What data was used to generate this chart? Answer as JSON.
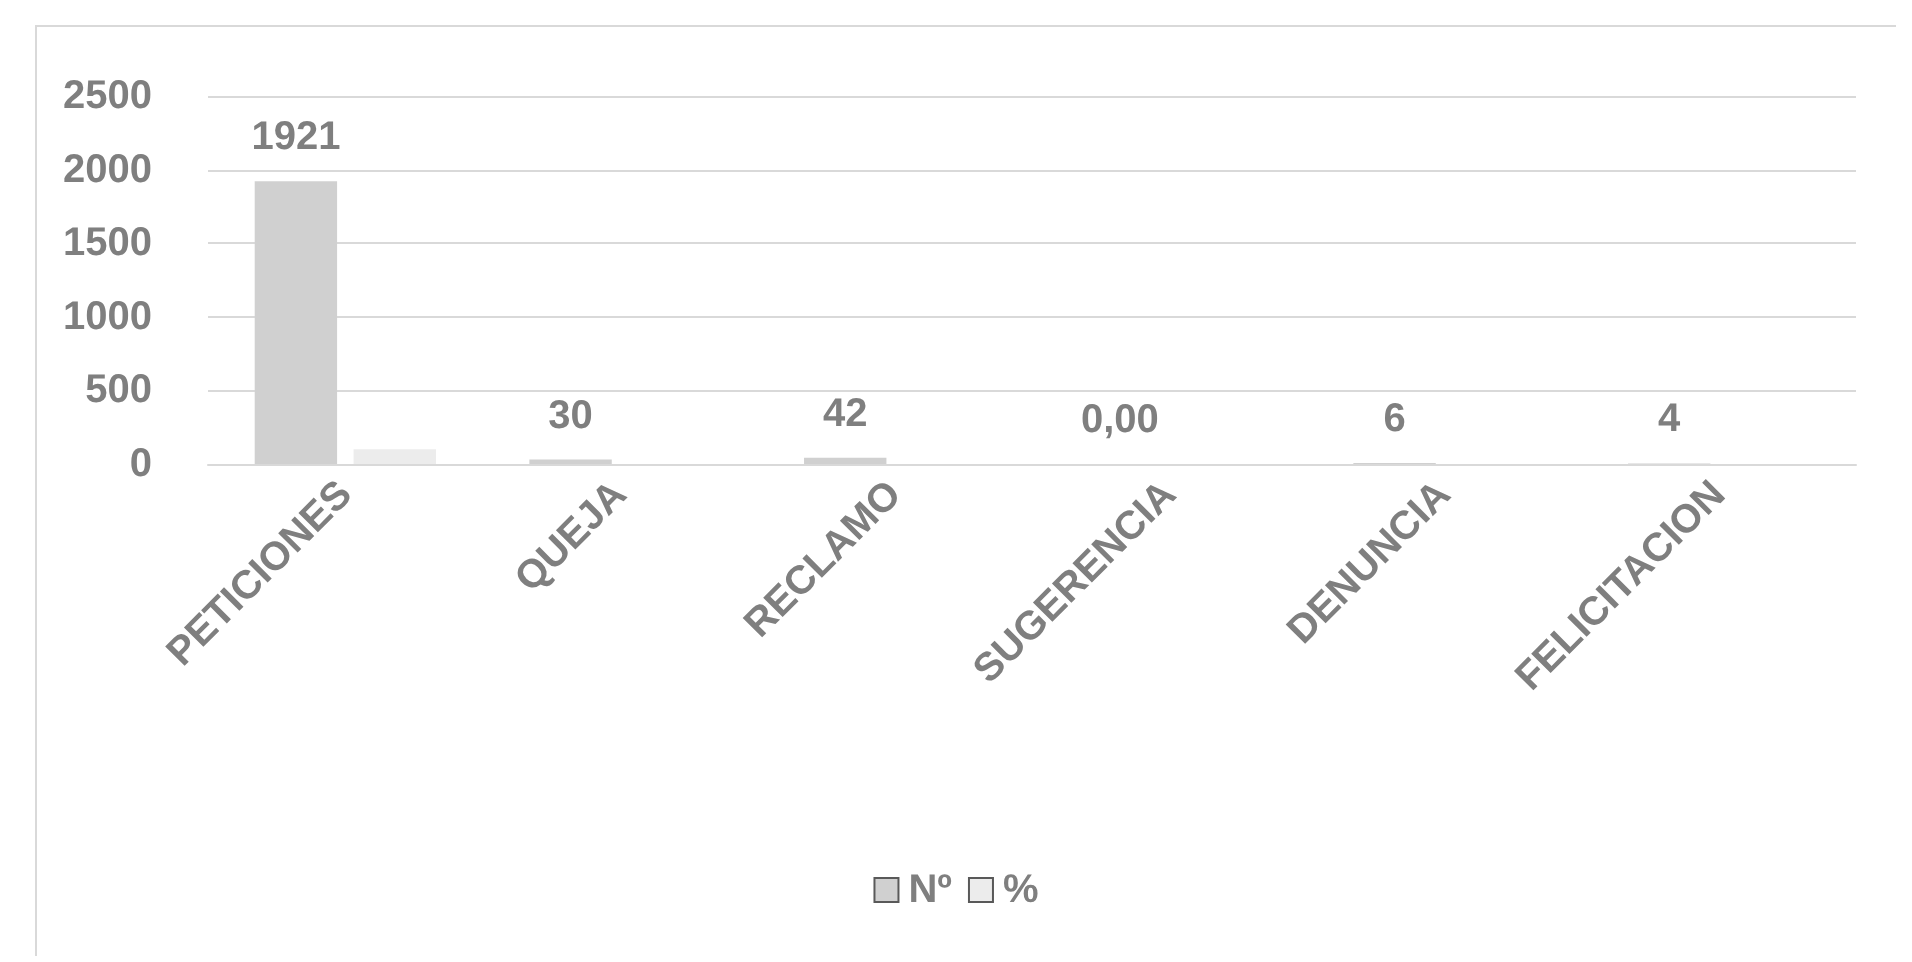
{
  "chart_data": {
    "type": "bar",
    "categories": [
      "PETICIONES",
      "QUEJA",
      "RECLAMO",
      "SUGERENCIA",
      "DENUNCIA",
      "FELICITACION"
    ],
    "series": [
      {
        "name": "Nº",
        "color": "#d0d0d0",
        "values": [
          1921,
          30,
          42,
          0,
          6,
          4
        ],
        "value_labels": [
          "1921",
          "30",
          "42",
          "0,00",
          "6",
          "4"
        ]
      },
      {
        "name": "%",
        "color": "#ececec",
        "values": [
          100,
          0,
          0,
          0,
          0,
          0
        ]
      }
    ],
    "ylim": [
      0,
      2500
    ],
    "yticks": [
      0,
      500,
      1000,
      1500,
      2000,
      2500
    ],
    "grid": "y",
    "legend": "bottom"
  }
}
